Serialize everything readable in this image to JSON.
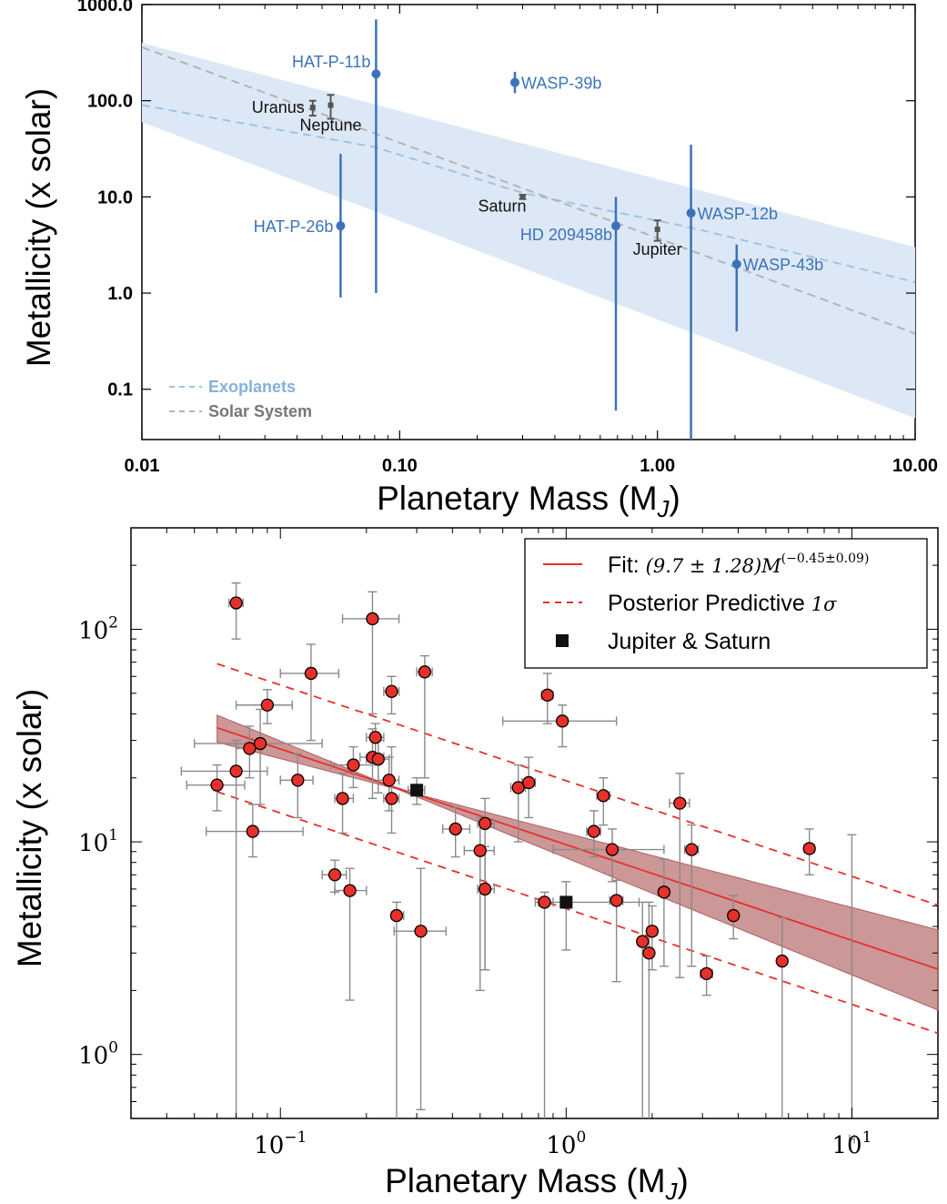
{
  "chart_data": [
    {
      "type": "scatter",
      "xlabel": "Planetary Mass (M",
      "xlabel_sub": "J",
      "xlabel_close": ")",
      "ylabel": "Metallicity (x solar)",
      "xscale": "log",
      "yscale": "log",
      "xlim": [
        0.01,
        10
      ],
      "ylim": [
        0.03,
        1000
      ],
      "xticks": [
        {
          "value": 0.01,
          "label": "0.01"
        },
        {
          "value": 0.1,
          "label": "0.10"
        },
        {
          "value": 1,
          "label": "1.00"
        },
        {
          "value": 10,
          "label": "10.00"
        }
      ],
      "yticks": [
        {
          "value": 0.1,
          "label": "0.1"
        },
        {
          "value": 1,
          "label": "1.0"
        },
        {
          "value": 10,
          "label": "10.0"
        },
        {
          "value": 100,
          "label": "100.0"
        },
        {
          "value": 1000,
          "label": "1000.0"
        }
      ],
      "band": {
        "color": "#dde8f6",
        "upper": [
          [
            0.01,
            400
          ],
          [
            10,
            3.0
          ]
        ],
        "lower": [
          [
            0.01,
            60
          ],
          [
            10,
            0.05
          ]
        ]
      },
      "exoplanets": [
        {
          "name": "HAT-P-26b",
          "x": 0.059,
          "y": 5.0,
          "ylo": 0.9,
          "yhi": 28,
          "label_side": "left"
        },
        {
          "name": "HAT-P-11b",
          "x": 0.081,
          "y": 190,
          "ylo": 1.0,
          "yhi": 700,
          "label_side": "left-up"
        },
        {
          "name": "WASP-39b",
          "x": 0.28,
          "y": 155,
          "ylo": 120,
          "yhi": 200,
          "label_side": "right"
        },
        {
          "name": "HD 209458b",
          "x": 0.69,
          "y": 5.0,
          "ylo": 0.06,
          "yhi": 10,
          "label_side": "left-down"
        },
        {
          "name": "WASP-12b",
          "x": 1.35,
          "y": 6.8,
          "ylo": 0.02,
          "yhi": 35,
          "label_side": "right"
        },
        {
          "name": "WASP-43b",
          "x": 2.03,
          "y": 2.0,
          "ylo": 0.4,
          "yhi": 3.2,
          "label_side": "right"
        }
      ],
      "solar_system": [
        {
          "name": "Uranus",
          "x": 0.046,
          "y": 85,
          "ylo": 70,
          "yhi": 100,
          "label_side": "left"
        },
        {
          "name": "Neptune",
          "x": 0.054,
          "y": 90,
          "ylo": 65,
          "yhi": 115,
          "label_side": "below"
        },
        {
          "name": "Saturn",
          "x": 0.3,
          "y": 10,
          "ylo": 9.5,
          "yhi": 10.5,
          "label_side": "left-down"
        },
        {
          "name": "Jupiter",
          "x": 1.0,
          "y": 4.6,
          "ylo": 3.5,
          "yhi": 5.7,
          "label_side": "below"
        }
      ],
      "lines": [
        {
          "name": "Exoplanets",
          "color": "#9ec4e4",
          "points": [
            [
              0.01,
              90
            ],
            [
              0.08,
              33
            ],
            [
              0.3,
              11
            ],
            [
              1.35,
              4.8
            ],
            [
              10,
              1.3
            ]
          ]
        },
        {
          "name": "Solar System",
          "color": "#b4b4b4",
          "points": [
            [
              0.01,
              360
            ],
            [
              10,
              0.38
            ]
          ]
        }
      ],
      "legend": {
        "position": "bottom-left",
        "entries": [
          "Exoplanets",
          "Solar System"
        ]
      },
      "colors": {
        "exoplanet": "#3b73b9",
        "solar": "#555555",
        "exo_label": "#3b73b9"
      }
    },
    {
      "type": "scatter",
      "xlabel": "Planetary Mass (M",
      "xlabel_sub": "J",
      "xlabel_close": ")",
      "ylabel": "Metallicity (x solar)",
      "xscale": "log",
      "yscale": "log",
      "xlim": [
        0.03,
        20
      ],
      "ylim": [
        0.5,
        300
      ],
      "xticks": [
        {
          "value": 0.1,
          "base": "10",
          "exp": "−1"
        },
        {
          "value": 1,
          "base": "10",
          "exp": "0"
        },
        {
          "value": 10,
          "base": "10",
          "exp": "1"
        }
      ],
      "yticks": [
        {
          "value": 1,
          "base": "10",
          "exp": "0"
        },
        {
          "value": 10,
          "base": "10",
          "exp": "1"
        },
        {
          "value": 100,
          "base": "10",
          "exp": "2"
        }
      ],
      "fit": {
        "a": 9.7,
        "b": -0.45,
        "xrange": [
          0.06,
          20
        ],
        "band_lo_a": 8.4,
        "band_lo_b": -0.55,
        "band_hi_a": 11.0,
        "band_hi_b": -0.35,
        "pp_factor": 2.0
      },
      "legend": {
        "position": "top-right",
        "entries": [
          {
            "label": "Fit: ",
            "math": "(9.7 ± 1.28)M",
            "sup": "(−0.45±0.09)",
            "style": "solid"
          },
          {
            "label": "Posterior Predictive ",
            "math": "1σ",
            "style": "dashed"
          },
          {
            "label": "Jupiter & Saturn",
            "style": "square"
          }
        ]
      },
      "points": [
        {
          "x": 0.06,
          "y": 18.5,
          "xlo": 0.047,
          "xhi": 0.075,
          "ylo": 14,
          "yhi": 23
        },
        {
          "x": 0.07,
          "y": 133,
          "xlo": 0.066,
          "xhi": 0.074,
          "ylo": 90,
          "yhi": 165
        },
        {
          "x": 0.07,
          "y": 21.5,
          "xlo": 0.045,
          "xhi": 0.09,
          "ylo": 0.4,
          "yhi": 30
        },
        {
          "x": 0.078,
          "y": 27.5,
          "xlo": 0.07,
          "xhi": 0.086,
          "ylo": 20,
          "yhi": 35
        },
        {
          "x": 0.08,
          "y": 11.2,
          "xlo": 0.055,
          "xhi": 0.12,
          "ylo": 8.5,
          "yhi": 15
        },
        {
          "x": 0.085,
          "y": 29,
          "xlo": 0.05,
          "xhi": 0.14,
          "ylo": 15,
          "yhi": 42
        },
        {
          "x": 0.09,
          "y": 44,
          "xlo": 0.07,
          "xhi": 0.11,
          "ylo": 36,
          "yhi": 52
        },
        {
          "x": 0.115,
          "y": 19.5,
          "xlo": 0.1,
          "xhi": 0.13,
          "ylo": 13,
          "yhi": 26
        },
        {
          "x": 0.128,
          "y": 62,
          "xlo": 0.1,
          "xhi": 0.16,
          "ylo": 30,
          "yhi": 85
        },
        {
          "x": 0.155,
          "y": 7,
          "xlo": 0.14,
          "xhi": 0.17,
          "ylo": 5.8,
          "yhi": 8.2
        },
        {
          "x": 0.165,
          "y": 16,
          "xlo": 0.155,
          "xhi": 0.18,
          "ylo": 11,
          "yhi": 21
        },
        {
          "x": 0.175,
          "y": 5.9,
          "xlo": 0.155,
          "xhi": 0.2,
          "ylo": 1.8,
          "yhi": 7.5
        },
        {
          "x": 0.18,
          "y": 23,
          "xlo": 0.15,
          "xhi": 0.22,
          "ylo": 18,
          "yhi": 28
        },
        {
          "x": 0.21,
          "y": 112,
          "xlo": 0.165,
          "xhi": 0.26,
          "ylo": 40,
          "yhi": 150
        },
        {
          "x": 0.21,
          "y": 25,
          "xlo": 0.19,
          "xhi": 0.23,
          "ylo": 16,
          "yhi": 34
        },
        {
          "x": 0.215,
          "y": 31,
          "xlo": 0.2,
          "xhi": 0.23,
          "ylo": 26,
          "yhi": 36
        },
        {
          "x": 0.22,
          "y": 24.5,
          "xlo": 0.2,
          "xhi": 0.24,
          "ylo": 17,
          "yhi": 30
        },
        {
          "x": 0.24,
          "y": 19.5,
          "xlo": 0.22,
          "xhi": 0.26,
          "ylo": 14,
          "yhi": 25
        },
        {
          "x": 0.245,
          "y": 51,
          "xlo": 0.23,
          "xhi": 0.26,
          "ylo": 40,
          "yhi": 60
        },
        {
          "x": 0.245,
          "y": 16,
          "xlo": 0.23,
          "xhi": 0.26,
          "ylo": 11,
          "yhi": 28
        },
        {
          "x": 0.255,
          "y": 4.5,
          "xlo": 0.245,
          "xhi": 0.27,
          "ylo": 0.5,
          "yhi": 5.2
        },
        {
          "x": 0.32,
          "y": 63,
          "xlo": 0.3,
          "xhi": 0.34,
          "ylo": 20,
          "yhi": 75
        },
        {
          "x": 0.31,
          "y": 3.8,
          "xlo": 0.25,
          "xhi": 0.38,
          "ylo": 0.55,
          "yhi": 7.5
        },
        {
          "x": 0.41,
          "y": 11.5,
          "xlo": 0.37,
          "xhi": 0.46,
          "ylo": 8.5,
          "yhi": 14.5
        },
        {
          "x": 0.5,
          "y": 9.1,
          "xlo": 0.44,
          "xhi": 0.56,
          "ylo": 2.0,
          "yhi": 13
        },
        {
          "x": 0.52,
          "y": 12.2,
          "xlo": 0.49,
          "xhi": 0.56,
          "ylo": 2.5,
          "yhi": 16
        },
        {
          "x": 0.52,
          "y": 6,
          "xlo": 0.49,
          "xhi": 0.56,
          "ylo": 2.5,
          "yhi": 9.5
        },
        {
          "x": 0.68,
          "y": 18,
          "xlo": 0.64,
          "xhi": 0.72,
          "ylo": 10,
          "yhi": 23
        },
        {
          "x": 0.74,
          "y": 19,
          "xlo": 0.7,
          "xhi": 0.78,
          "ylo": 13,
          "yhi": 25
        },
        {
          "x": 0.86,
          "y": 49,
          "xlo": 0.82,
          "xhi": 0.9,
          "ylo": 36,
          "yhi": 62
        },
        {
          "x": 0.84,
          "y": 5.2,
          "xlo": 0.78,
          "xhi": 0.9,
          "ylo": 0.45,
          "yhi": 5.8
        },
        {
          "x": 0.97,
          "y": 37,
          "xlo": 0.6,
          "xhi": 1.5,
          "ylo": 28,
          "yhi": 44
        },
        {
          "x": 1.25,
          "y": 11.2,
          "xlo": 1.18,
          "xhi": 1.32,
          "ylo": 8.5,
          "yhi": 14
        },
        {
          "x": 1.35,
          "y": 16.5,
          "xlo": 1.28,
          "xhi": 1.42,
          "ylo": 12,
          "yhi": 20
        },
        {
          "x": 1.45,
          "y": 9.2,
          "xlo": 0.9,
          "xhi": 2.2,
          "ylo": 6.5,
          "yhi": 11.5
        },
        {
          "x": 1.5,
          "y": 5.3,
          "xlo": 1.42,
          "xhi": 1.58,
          "ylo": 2.2,
          "yhi": 6.6
        },
        {
          "x": 1.85,
          "y": 3.4,
          "xlo": 1.78,
          "xhi": 1.92,
          "ylo": 0.45,
          "yhi": 5.2
        },
        {
          "x": 1.95,
          "y": 3.0,
          "xlo": 1.88,
          "xhi": 2.02,
          "ylo": 0.45,
          "yhi": 5.2
        },
        {
          "x": 2.0,
          "y": 3.8,
          "xlo": 1.92,
          "xhi": 2.08,
          "ylo": 2.5,
          "yhi": 5.0
        },
        {
          "x": 2.2,
          "y": 5.8,
          "xlo": 2.1,
          "xhi": 2.3,
          "ylo": 2.6,
          "yhi": 8.3
        },
        {
          "x": 2.5,
          "y": 15.2,
          "xlo": 2.3,
          "xhi": 2.7,
          "ylo": 2.3,
          "yhi": 21
        },
        {
          "x": 2.75,
          "y": 9.2,
          "xlo": 2.6,
          "xhi": 2.9,
          "ylo": 2.6,
          "yhi": 12
        },
        {
          "x": 3.1,
          "y": 2.4,
          "xlo": 2.95,
          "xhi": 3.25,
          "ylo": 1.9,
          "yhi": 2.9
        },
        {
          "x": 3.85,
          "y": 4.5,
          "xlo": 3.7,
          "xhi": 4.0,
          "ylo": 3.5,
          "yhi": 5.6
        },
        {
          "x": 5.7,
          "y": 2.75,
          "xlo": 5.5,
          "xhi": 5.9,
          "ylo": 0.45,
          "yhi": 4.4
        },
        {
          "x": 7.1,
          "y": 9.3,
          "xlo": 6.8,
          "xhi": 7.4,
          "ylo": 7.0,
          "yhi": 11.5
        },
        {
          "x": 10.0,
          "y": 0.4,
          "xlo": 9.8,
          "xhi": 10.2,
          "ylo": 0.4,
          "yhi": 10.8
        }
      ],
      "solar_system": [
        {
          "name": "Jupiter",
          "x": 1.0,
          "y": 5.2,
          "xlo": 0.8,
          "xhi": 1.8,
          "ylo": 3.1,
          "yhi": 6.5
        },
        {
          "name": "Saturn",
          "x": 0.3,
          "y": 17.5,
          "xlo": 0.28,
          "xhi": 0.32,
          "ylo": 15,
          "yhi": 20
        }
      ],
      "colors": {
        "point": "#e8302b",
        "fit": "#e8302b",
        "band": "#b15f5f",
        "errbar": "#8a8a8a",
        "square": "#111111"
      }
    }
  ]
}
